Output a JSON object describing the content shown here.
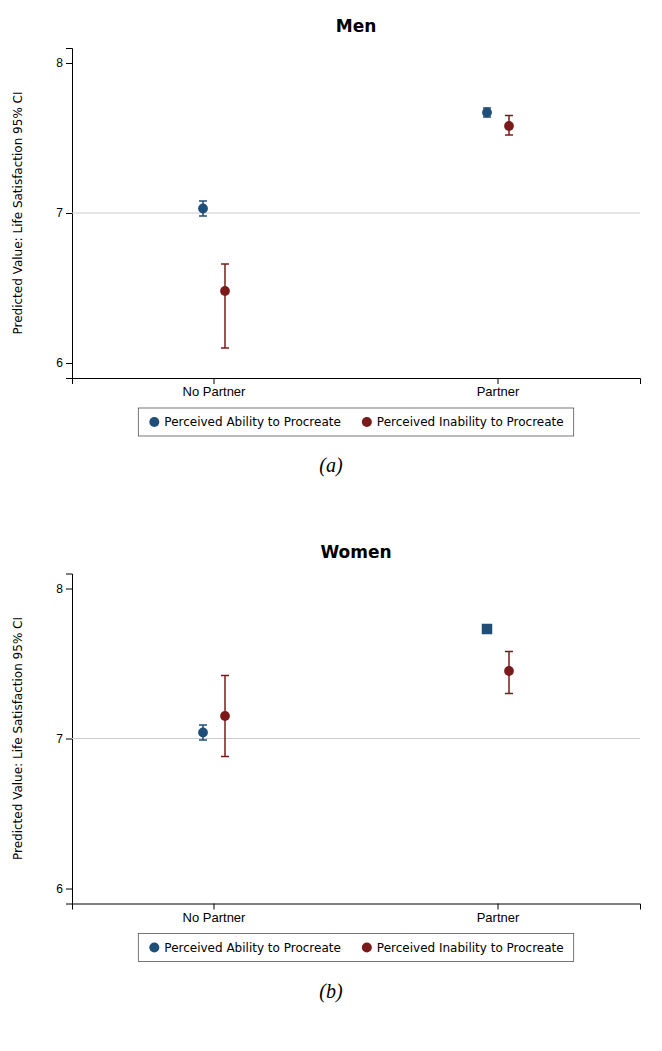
{
  "chart_data": [
    {
      "type": "scatter",
      "title": "Men",
      "categories": [
        "No Partner",
        "Partner"
      ],
      "y_label": "Predicted Value: Life Satisfaction 95% CI",
      "ylim": [
        5.9,
        8.1
      ],
      "yticks": [
        6,
        7,
        8
      ],
      "reference_line": 7,
      "legend": "bottom",
      "annotation": "(a)",
      "series": [
        {
          "name": "Perceived Ability to Procreate",
          "color": "#1f4e79",
          "marker": "circle",
          "values": [
            7.03,
            7.67
          ],
          "error_low": [
            0.05,
            0.03
          ],
          "error_high": [
            0.05,
            0.03
          ]
        },
        {
          "name": "Perceived Inability to Procreate",
          "color": "#7b1a1a",
          "marker": "circle",
          "values": [
            6.48,
            7.58
          ],
          "error_low": [
            0.38,
            0.06
          ],
          "error_high": [
            0.18,
            0.07
          ]
        }
      ]
    },
    {
      "type": "scatter",
      "title": "Women",
      "categories": [
        "No Partner",
        "Partner"
      ],
      "y_label": "Predicted Value: Life Satisfaction 95% CI",
      "ylim": [
        5.9,
        8.1
      ],
      "yticks": [
        6,
        7,
        8
      ],
      "reference_line": 7,
      "legend": "bottom",
      "annotation": "(b)",
      "series": [
        {
          "name": "Perceived Ability to Procreate",
          "color": "#1f4e79",
          "marker": [
            "circle",
            "square"
          ],
          "values": [
            7.04,
            7.73
          ],
          "error_low": [
            0.05,
            0.0
          ],
          "error_high": [
            0.05,
            0.0
          ]
        },
        {
          "name": "Perceived Inability to Procreate",
          "color": "#7b1a1a",
          "marker": "circle",
          "values": [
            7.15,
            7.45
          ],
          "error_low": [
            0.27,
            0.15
          ],
          "error_high": [
            0.27,
            0.13
          ]
        }
      ]
    }
  ]
}
